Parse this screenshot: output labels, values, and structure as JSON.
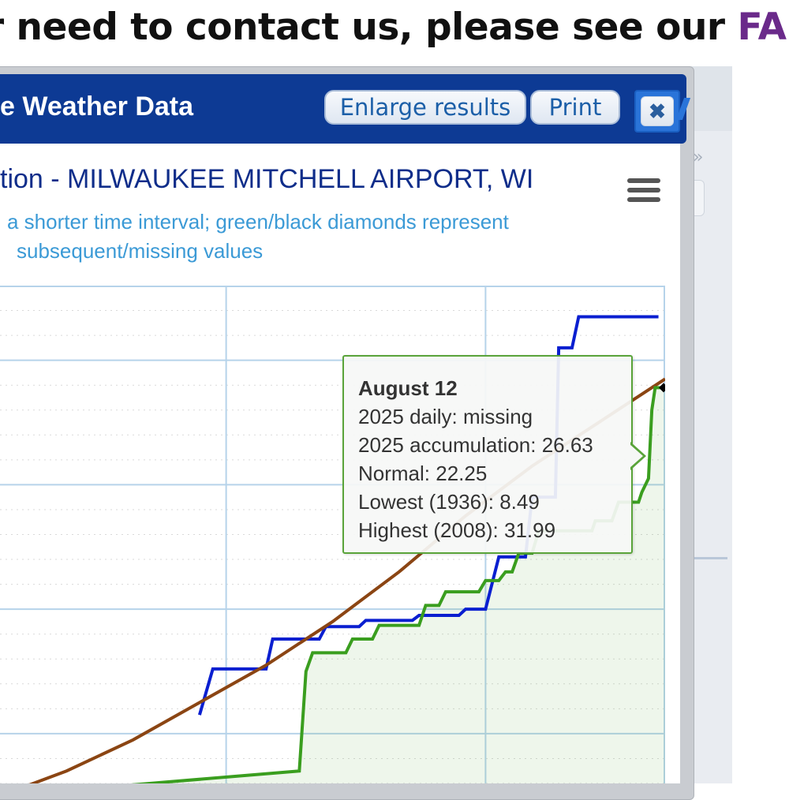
{
  "page": {
    "heading_text": "r need to contact us, please see our ",
    "heading_link": "FA",
    "bg_next_glyph": "»"
  },
  "dialog": {
    "title": "e Weather Data",
    "enlarge_label": "Enlarge results",
    "print_label": "Print",
    "close_glyph": "✖"
  },
  "chart_data": {
    "type": "line",
    "title": "tion - MILWAUKEE MITCHELL AIRPORT, WI",
    "subtitle": [
      "a shorter time interval; green/black diamonds represent",
      "subsequent/missing values"
    ],
    "series": [
      {
        "name": "Highest (2008)",
        "color": "#0a1fd0",
        "points": [
          [
            0.3,
            1.5
          ],
          [
            0.32,
            5.2
          ],
          [
            0.4,
            5.2
          ],
          [
            0.41,
            7.6
          ],
          [
            0.48,
            7.6
          ],
          [
            0.49,
            8.6
          ],
          [
            0.54,
            8.6
          ],
          [
            0.55,
            9.1
          ],
          [
            0.62,
            9.1
          ],
          [
            0.63,
            9.5
          ],
          [
            0.69,
            9.5
          ],
          [
            0.7,
            10.0
          ],
          [
            0.73,
            10.0
          ],
          [
            0.75,
            14.2
          ],
          [
            0.79,
            14.2
          ],
          [
            0.8,
            19.0
          ],
          [
            0.835,
            19.0
          ],
          [
            0.84,
            31.0
          ],
          [
            0.86,
            31.0
          ],
          [
            0.87,
            33.5
          ],
          [
            0.99,
            33.5
          ]
        ]
      },
      {
        "name": "Normal",
        "color": "#8b4513",
        "points": [
          [
            0.0,
            -5.0
          ],
          [
            0.1,
            -3.0
          ],
          [
            0.2,
            -0.5
          ],
          [
            0.3,
            2.5
          ],
          [
            0.4,
            5.5
          ],
          [
            0.5,
            9.0
          ],
          [
            0.6,
            13.0
          ],
          [
            0.7,
            17.5
          ],
          [
            0.8,
            21.5
          ],
          [
            0.9,
            25.0
          ],
          [
            1.0,
            28.5
          ]
        ]
      },
      {
        "name": "2025 accumulation",
        "color": "#3a9e1f",
        "points": [
          [
            0.0,
            -5.0
          ],
          [
            0.45,
            -3.0
          ],
          [
            0.46,
            5.0
          ],
          [
            0.47,
            6.5
          ],
          [
            0.52,
            6.5
          ],
          [
            0.53,
            7.6
          ],
          [
            0.56,
            7.6
          ],
          [
            0.57,
            8.7
          ],
          [
            0.63,
            8.7
          ],
          [
            0.64,
            10.3
          ],
          [
            0.66,
            10.3
          ],
          [
            0.67,
            11.4
          ],
          [
            0.72,
            11.4
          ],
          [
            0.73,
            12.3
          ],
          [
            0.75,
            12.3
          ],
          [
            0.76,
            13.0
          ],
          [
            0.77,
            13.0
          ],
          [
            0.78,
            14.5
          ],
          [
            0.8,
            14.5
          ],
          [
            0.81,
            16.3
          ],
          [
            0.89,
            16.3
          ],
          [
            0.895,
            17.1
          ],
          [
            0.92,
            17.1
          ],
          [
            0.93,
            18.6
          ],
          [
            0.96,
            18.6
          ],
          [
            0.965,
            19.4
          ],
          [
            0.975,
            20.5
          ],
          [
            0.98,
            26.0
          ],
          [
            0.985,
            27.8
          ],
          [
            1.0,
            27.8
          ]
        ]
      }
    ],
    "x_gridlines": [
      0.34,
      0.73
    ],
    "ylim": [
      -4,
      36
    ],
    "missing_marker": [
      1.0,
      27.8
    ]
  },
  "tooltip": {
    "date": "August 12",
    "daily": "2025 daily: missing",
    "accumulation": "2025 accumulation: 26.63",
    "normal": "Normal: 22.25",
    "lowest": "Lowest (1936): 8.49",
    "highest": "Highest (2008): 31.99"
  }
}
